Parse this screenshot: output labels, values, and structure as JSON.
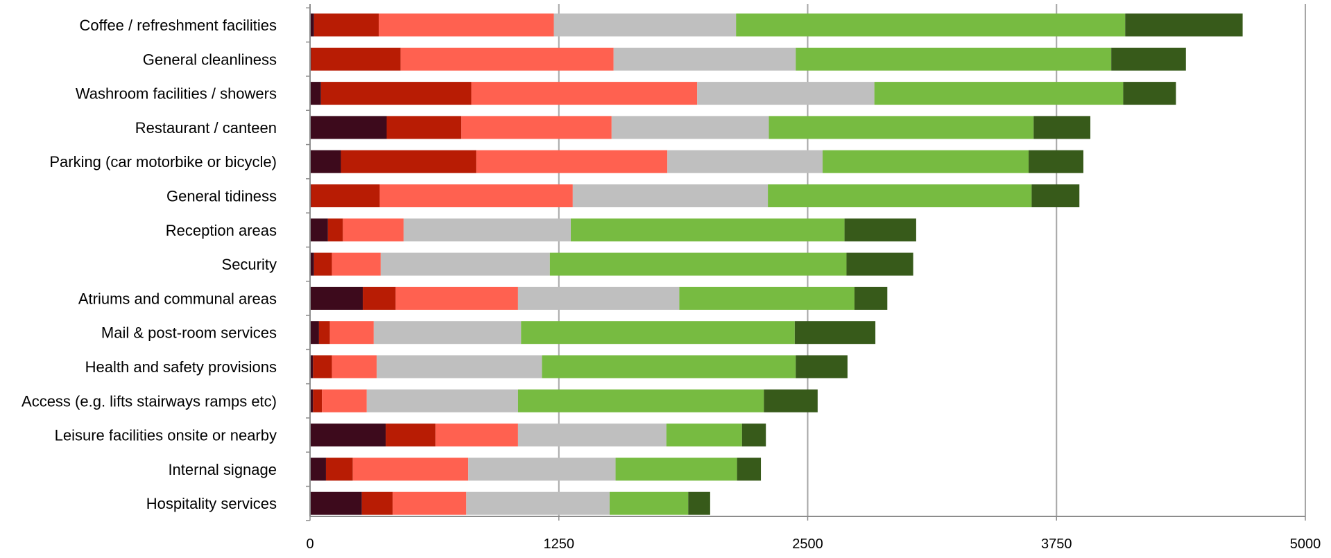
{
  "chart_data": {
    "type": "bar",
    "orientation": "horizontal",
    "stacked": true,
    "title": "",
    "xlabel": "",
    "ylabel": "",
    "xlim": [
      0,
      5000
    ],
    "x_ticks": [
      "0",
      "1250",
      "2500",
      "3750",
      "5000"
    ],
    "grid": "vertical",
    "legend": "none",
    "categories": [
      "Coffee / refreshment facilities",
      "General cleanliness",
      "Washroom facilities / showers",
      "Restaurant / canteen",
      "Parking (car motorbike or bicycle)",
      "General tidiness",
      "Reception areas",
      "Security",
      "Atriums and communal areas",
      "Mail & post-room services",
      "Health and safety provisions",
      "Access (e.g. lifts stairways ramps etc)",
      "Leisure facilities onsite or nearby",
      "Internal signage",
      "Hospitality services"
    ],
    "series": [
      {
        "color": "#3d0a1c",
        "values": [
          20,
          5,
          55,
          385,
          155,
          5,
          90,
          20,
          265,
          45,
          15,
          15,
          380,
          80,
          260
        ]
      },
      {
        "color": "#b81c04",
        "values": [
          325,
          450,
          755,
          375,
          680,
          345,
          75,
          90,
          165,
          55,
          95,
          45,
          250,
          135,
          155
        ]
      },
      {
        "color": "#ff6150",
        "values": [
          880,
          1070,
          1135,
          755,
          960,
          970,
          305,
          245,
          615,
          220,
          225,
          225,
          415,
          580,
          370
        ]
      },
      {
        "color": "#bfbfbf",
        "values": [
          915,
          915,
          890,
          790,
          780,
          980,
          840,
          850,
          810,
          740,
          830,
          760,
          745,
          740,
          720
        ]
      },
      {
        "color": "#77bb41",
        "values": [
          1955,
          1585,
          1250,
          1330,
          1035,
          1325,
          1375,
          1490,
          880,
          1375,
          1275,
          1235,
          380,
          610,
          395
        ]
      },
      {
        "color": "#375a1a",
        "values": [
          590,
          375,
          265,
          285,
          275,
          240,
          360,
          335,
          165,
          405,
          260,
          270,
          120,
          120,
          110
        ]
      }
    ]
  }
}
